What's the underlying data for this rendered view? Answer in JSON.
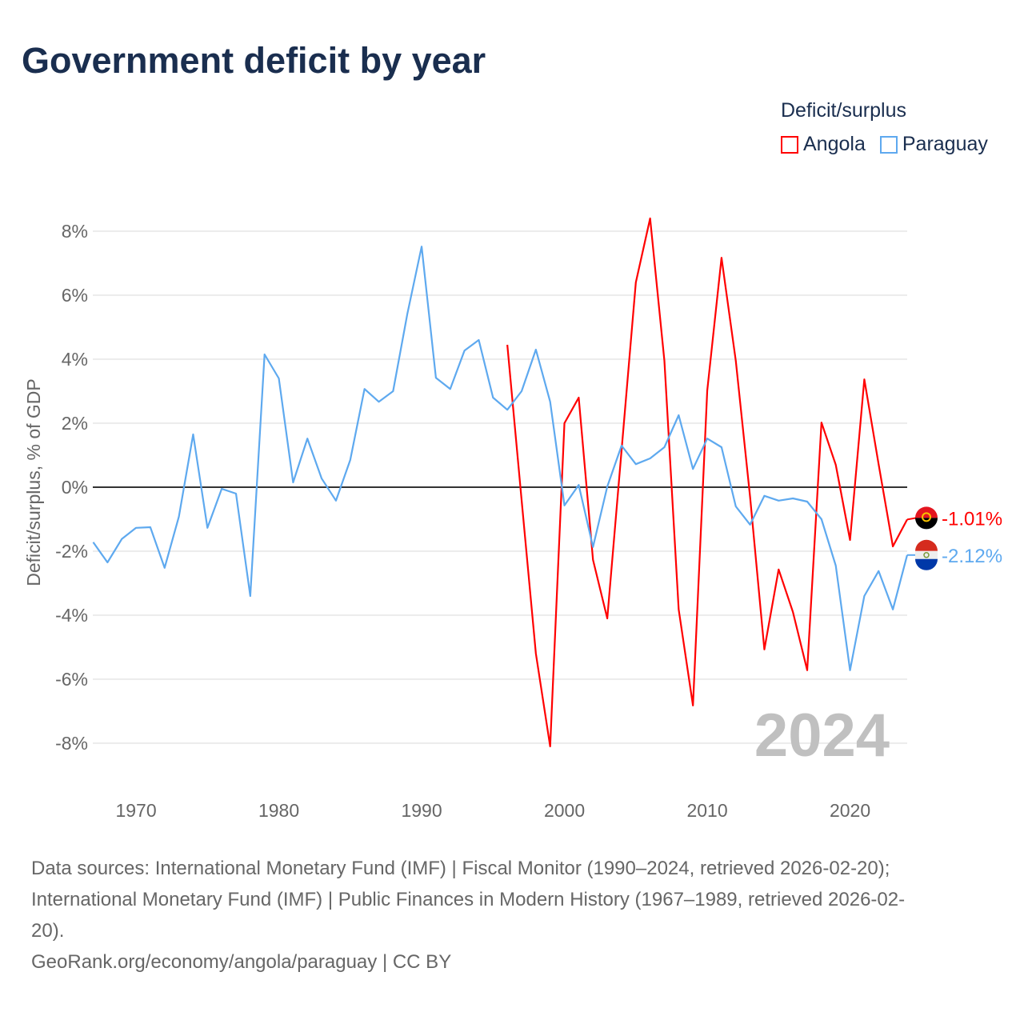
{
  "title": "Government deficit by year",
  "legend": {
    "title": "Deficit/surplus",
    "items": [
      {
        "name": "Angola",
        "color": "#ff0000"
      },
      {
        "name": "Paraguay",
        "color": "#5ea9ef"
      }
    ]
  },
  "chart_data": {
    "type": "line",
    "ylabel": "Deficit/surplus, % of GDP",
    "ylim": [
      -9,
      8.5
    ],
    "xlim": [
      1967,
      2024
    ],
    "yticks": [
      8,
      6,
      4,
      2,
      0,
      -2,
      -4,
      -6,
      -8
    ],
    "ytick_labels": [
      "8%",
      "6%",
      "4%",
      "2%",
      "0%",
      "-2%",
      "-4%",
      "-6%",
      "-8%"
    ],
    "xticks": [
      1970,
      1980,
      1990,
      2000,
      2010,
      2020
    ],
    "xtick_labels": [
      "1970",
      "1980",
      "1990",
      "2000",
      "2010",
      "2020"
    ],
    "year_label": "2024",
    "grid": true,
    "legend_position": "top-right",
    "series": [
      {
        "name": "Angola",
        "color": "#ff0000",
        "start": 1996,
        "end_label": "-1.01%",
        "values": [
          4.45,
          -0.4,
          -5.2,
          -8.1,
          2.0,
          2.8,
          -2.27,
          -4.1,
          1.15,
          6.4,
          8.4,
          3.95,
          -3.82,
          -6.82,
          3.02,
          7.17,
          3.95,
          -0.3,
          -5.07,
          -2.57,
          -3.9,
          -5.72,
          2.02,
          0.7,
          -1.65,
          3.37,
          0.72,
          -1.85,
          -1.01
        ]
      },
      {
        "name": "Paraguay",
        "color": "#5ea9ef",
        "start": 1967,
        "end_label": "-2.12%",
        "values": [
          -1.72,
          -2.35,
          -1.62,
          -1.27,
          -1.25,
          -2.52,
          -0.92,
          1.65,
          -1.27,
          -0.05,
          -0.2,
          -3.4,
          4.15,
          3.4,
          0.15,
          1.52,
          0.27,
          -0.42,
          0.85,
          3.07,
          2.67,
          3.0,
          5.42,
          7.52,
          3.42,
          3.07,
          4.27,
          4.6,
          2.8,
          2.42,
          3.0,
          4.3,
          2.67,
          -0.57,
          0.07,
          -1.87,
          0.02,
          1.3,
          0.72,
          0.9,
          1.25,
          2.25,
          0.57,
          1.52,
          1.25,
          -0.6,
          -1.17,
          -0.27,
          -0.42,
          -0.35,
          -0.45,
          -1.0,
          -2.45,
          -5.72,
          -3.4,
          -2.62,
          -3.82,
          -2.12
        ]
      }
    ]
  },
  "sources": [
    "Data sources: International Monetary Fund (IMF) | Fiscal Monitor (1990–2024, retrieved 2026-02-20);",
    "International Monetary Fund (IMF) | Public Finances in Modern History (1967–1989, retrieved 2026-02-",
    "20).",
    "GeoRank.org/economy/angola/paraguay | CC BY"
  ]
}
